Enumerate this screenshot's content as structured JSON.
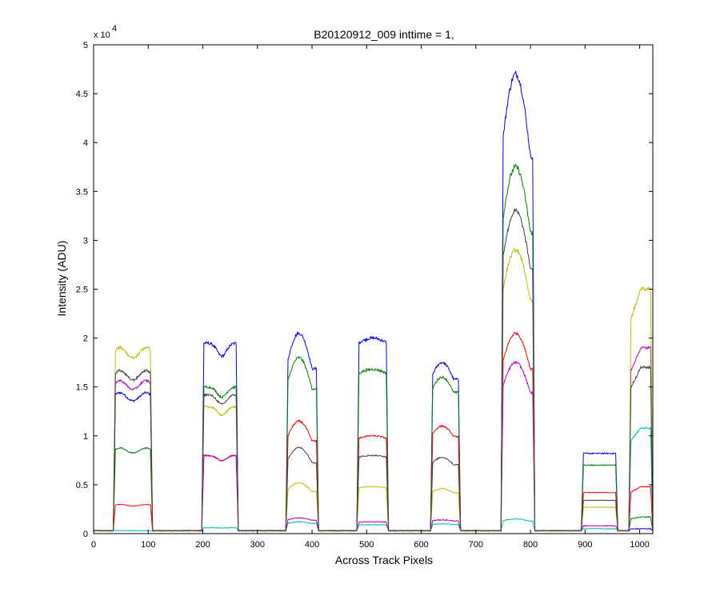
{
  "chart_data": {
    "type": "line",
    "title": "B20120912_009 inttime = 1,",
    "xlabel": "Across Track Pixels",
    "ylabel": "Intensity (ADU)",
    "y_multiplier_label": "x 10",
    "y_multiplier_exponent": "4",
    "xlim": [
      0,
      1024
    ],
    "ylim": [
      0,
      50000
    ],
    "x_ticks": [
      0,
      100,
      200,
      300,
      400,
      500,
      600,
      700,
      800,
      900,
      1000
    ],
    "y_ticks": [
      0,
      5000,
      10000,
      15000,
      20000,
      25000,
      30000,
      35000,
      40000,
      45000,
      50000
    ],
    "y_tick_labels": [
      "0",
      "0.5",
      "1",
      "1.5",
      "2",
      "2.5",
      "3",
      "3.5",
      "4",
      "4.5",
      "5"
    ],
    "grid": false,
    "baseline": 300,
    "segments": [
      {
        "start": 36,
        "end": 108
      },
      {
        "start": 198,
        "end": 265
      },
      {
        "start": 352,
        "end": 412
      },
      {
        "start": 482,
        "end": 540
      },
      {
        "start": 617,
        "end": 672
      },
      {
        "start": 746,
        "end": 808
      },
      {
        "start": 893,
        "end": 960
      },
      {
        "start": 980,
        "end": 1024
      }
    ],
    "series": [
      {
        "color": "#0000ff",
        "plateaus": [
          14000,
          19500,
          20500,
          20000,
          17500,
          47000,
          8200,
          500
        ]
      },
      {
        "color": "#008000",
        "plateaus": [
          8500,
          15000,
          18000,
          16800,
          16000,
          37500,
          7000,
          1700
        ]
      },
      {
        "color": "#ff0000",
        "plateaus": [
          2900,
          8000,
          11500,
          10000,
          11000,
          20500,
          4200,
          4800
        ]
      },
      {
        "color": "#00bfbf",
        "plateaus": [
          300,
          600,
          1200,
          900,
          1000,
          1500,
          500,
          10800
        ]
      },
      {
        "color": "#bf00bf",
        "plateaus": [
          15200,
          8000,
          1600,
          1200,
          1400,
          17500,
          800,
          19000
        ]
      },
      {
        "color": "#bfbf00",
        "plateaus": [
          18500,
          13000,
          5200,
          4800,
          4600,
          29000,
          2700,
          25000
        ]
      },
      {
        "color": "#404040",
        "plateaus": [
          16200,
          14200,
          8800,
          8000,
          7800,
          33000,
          3400,
          17000
        ]
      }
    ]
  }
}
